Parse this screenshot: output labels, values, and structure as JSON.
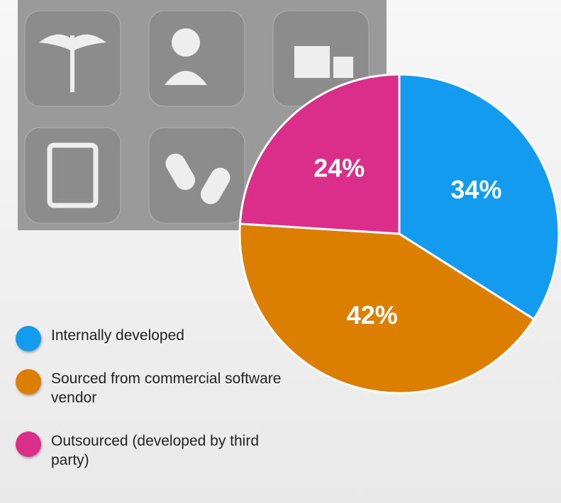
{
  "chart_data": {
    "type": "pie",
    "categories": [
      "Internally developed",
      "Sourced from commercial software vendor",
      "Outsourced (developed by third party)"
    ],
    "values": [
      34,
      42,
      24
    ],
    "value_labels": [
      "34%",
      "42%",
      "24%"
    ],
    "colors": [
      "#139bf0",
      "#dc7f00",
      "#db2d8a"
    ]
  }
}
